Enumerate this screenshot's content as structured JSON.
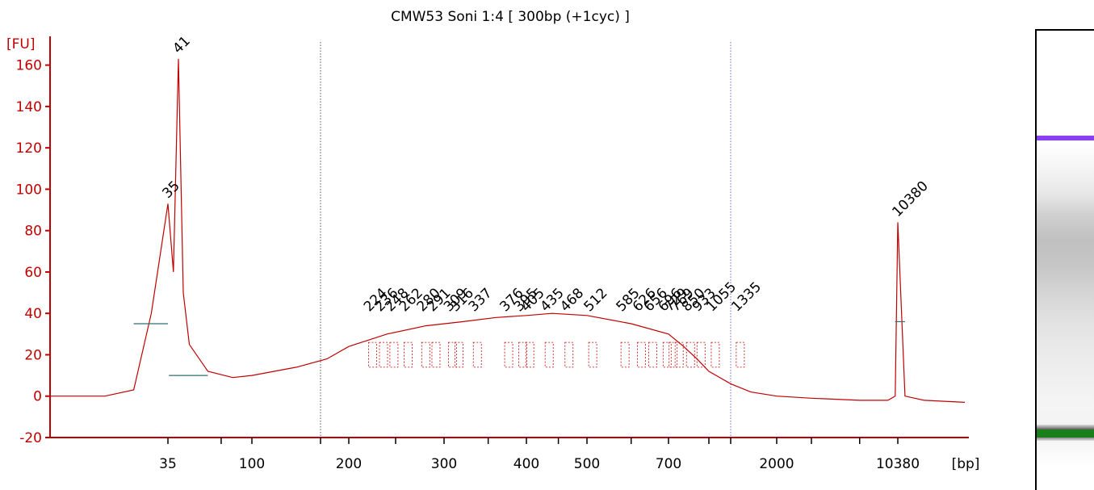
{
  "chart_data": {
    "type": "line",
    "title": "CMW53 Soni 1:4  [ 300bp (+1cyc) ]",
    "ylabel": "[FU]",
    "xlabel": "[bp]",
    "ylim": [
      -20,
      170
    ],
    "y_ticks": [
      -20,
      0,
      20,
      40,
      60,
      80,
      100,
      120,
      140,
      160
    ],
    "x_tick_labels": [
      "35",
      "100",
      "200",
      "300",
      "400",
      "500",
      "700",
      "2000",
      "10380"
    ],
    "x_scale": "custom (sizing ladder)",
    "region_markers_bp": [
      150,
      1200
    ],
    "peaks": [
      {
        "label": "35",
        "x_bp": 35,
        "y": 93,
        "color": "#1a7f1a",
        "kind": "lower marker"
      },
      {
        "label": "41",
        "x_bp": 41,
        "y": 163,
        "color": "#000000"
      },
      {
        "label": "10380",
        "x_bp": 10380,
        "y": 84,
        "color": "#8a3ff0",
        "kind": "upper marker"
      }
    ],
    "fragment_labels": [
      "224",
      "236",
      "248",
      "262",
      "280",
      "291",
      "309",
      "316",
      "337",
      "376",
      "395",
      "405",
      "435",
      "468",
      "512",
      "585",
      "626",
      "656",
      "696",
      "729",
      "769",
      "850",
      "933",
      "1055",
      "1335"
    ],
    "series": [
      {
        "values_description": "electropherogram trace",
        "x_bp": [
          20,
          28,
          31,
          33,
          35,
          38,
          41,
          44,
          48,
          60,
          80,
          100,
          130,
          160,
          200,
          240,
          280,
          320,
          360,
          400,
          440,
          500,
          600,
          700,
          800,
          900,
          1000,
          1200,
          1500,
          2000,
          3000,
          6000,
          9000,
          10000,
          10380,
          10800,
          12000,
          15000
        ],
        "y": [
          0,
          0,
          3,
          40,
          93,
          60,
          163,
          50,
          25,
          12,
          9,
          10,
          14,
          18,
          24,
          30,
          34,
          36,
          38,
          39,
          40,
          39,
          35,
          30,
          24,
          18,
          12,
          6,
          2,
          0,
          -1,
          -2,
          -2,
          0,
          84,
          0,
          -2,
          -3
        ]
      }
    ],
    "colors": {
      "axis": "#c00000",
      "trace": "#c00000",
      "baseline": "#2f6f6f",
      "marker_upper": "#8a3ff0",
      "marker_lower": "#1a7f1a"
    }
  },
  "gel": {
    "lane_colors": {
      "upper": "#8a3ff0",
      "lower": "#1a7f1a"
    }
  }
}
